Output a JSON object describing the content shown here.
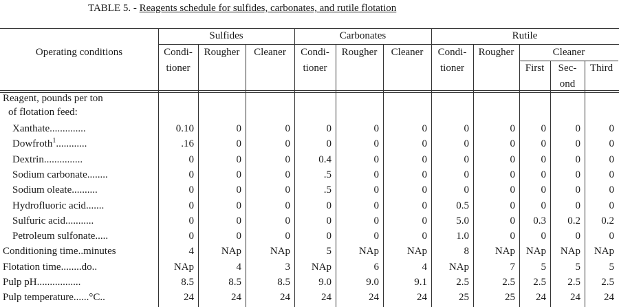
{
  "title": {
    "prefix": "TABLE 5. - ",
    "main": "Reagents schedule for sulfides, carbonates, and rutile flotation"
  },
  "header": {
    "stub": "Operating conditions",
    "groups": [
      {
        "name": "Sulfides",
        "columns": [
          [
            "Condi-",
            "tioner"
          ],
          [
            "Rougher"
          ],
          [
            "Cleaner"
          ]
        ]
      },
      {
        "name": "Carbonates",
        "columns": [
          [
            "Condi-",
            "tioner"
          ],
          [
            "Rougher"
          ],
          [
            "Cleaner"
          ]
        ]
      },
      {
        "name": "Rutile",
        "columns": [
          [
            "Condi-",
            "tioner"
          ],
          [
            "Rougher"
          ]
        ],
        "subgroup": {
          "name": "Cleaner",
          "columns": [
            [
              "First"
            ],
            [
              "Sec-",
              "ond"
            ],
            [
              "Third"
            ]
          ]
        }
      }
    ]
  },
  "rows": [
    {
      "label": "Reagent, pounds per ton"
    },
    {
      "label": "of flotation feed:"
    },
    {
      "label": "Xanthate..............",
      "values": [
        "0.10",
        "0",
        "0",
        "0",
        "0",
        "0",
        "0",
        "0",
        "0",
        "0",
        "0"
      ]
    },
    {
      "label": "Dowfroth",
      "footnote": "1",
      "label_tail": "............",
      "values": [
        ".16",
        "0",
        "0",
        "0",
        "0",
        "0",
        "0",
        "0",
        "0",
        "0",
        "0"
      ]
    },
    {
      "label": "Dextrin...............",
      "values": [
        "0",
        "0",
        "0",
        "0.4",
        "0",
        "0",
        "0",
        "0",
        "0",
        "0",
        "0"
      ]
    },
    {
      "label": "Sodium carbonate........",
      "values": [
        "0",
        "0",
        "0",
        ".5",
        "0",
        "0",
        "0",
        "0",
        "0",
        "0",
        "0"
      ]
    },
    {
      "label": "Sodium oleate..........",
      "values": [
        "0",
        "0",
        "0",
        ".5",
        "0",
        "0",
        "0",
        "0",
        "0",
        "0",
        "0"
      ]
    },
    {
      "label": "Hydrofluoric acid.......",
      "values": [
        "0",
        "0",
        "0",
        "0",
        "0",
        "0",
        "0.5",
        "0",
        "0",
        "0",
        "0"
      ]
    },
    {
      "label": "Sulfuric acid...........",
      "values": [
        "0",
        "0",
        "0",
        "0",
        "0",
        "0",
        "5.0",
        "0",
        "0.3",
        "0.2",
        "0.2"
      ]
    },
    {
      "label": "Petroleum sulfonate.....",
      "values": [
        "0",
        "0",
        "0",
        "0",
        "0",
        "0",
        "1.0",
        "0",
        "0",
        "0",
        "0"
      ]
    },
    {
      "label": "Conditioning time..minutes",
      "values": [
        "4",
        "NAp",
        "NAp",
        "5",
        "NAp",
        "NAp",
        "8",
        "NAp",
        "NAp",
        "NAp",
        "NAp"
      ]
    },
    {
      "label": "Flotation time........do..",
      "values": [
        "NAp",
        "4",
        "3",
        "NAp",
        "6",
        "4",
        "NAp",
        "7",
        "5",
        "5",
        "5"
      ]
    },
    {
      "label": "Pulp pH.................",
      "values": [
        "8.5",
        "8.5",
        "8.5",
        "9.0",
        "9.0",
        "9.1",
        "2.5",
        "2.5",
        "2.5",
        "2.5",
        "2.5"
      ]
    },
    {
      "label": "Pulp temperature......°C..",
      "values": [
        "24",
        "24",
        "24",
        "24",
        "24",
        "24",
        "25",
        "25",
        "24",
        "24",
        "24"
      ]
    }
  ]
}
